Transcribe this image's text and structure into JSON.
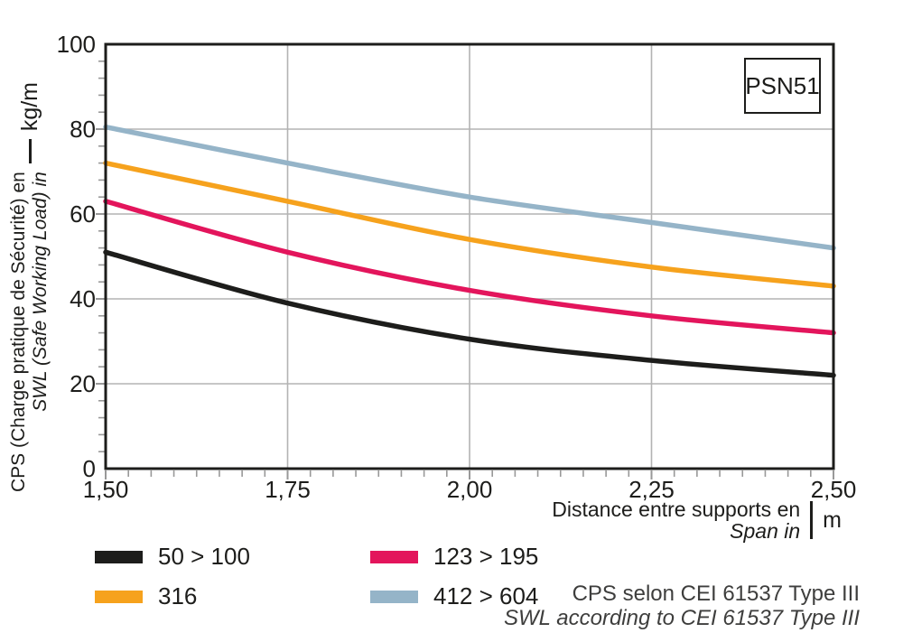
{
  "badge": {
    "label": "PSN51"
  },
  "y_axis": {
    "title_line1": "CPS (Charge pratique de Sécurité) en",
    "title_line2": "SWL (Safe Working Load) in",
    "unit": "kg/m"
  },
  "x_axis": {
    "title_line1": "Distance entre supports en",
    "title_line2": "Span in",
    "unit": "m"
  },
  "footnote": {
    "line1": "CPS selon CEI 61537 Type III",
    "line2": "SWL according to CEI 61537 Type III"
  },
  "chart_data": {
    "type": "line",
    "title": "PSN51",
    "x": [
      1.5,
      1.75,
      2.0,
      2.25,
      2.5
    ],
    "x_tick_labels": [
      "1,50",
      "1,75",
      "2,00",
      "2,25",
      "2,50"
    ],
    "y_ticks": [
      0,
      20,
      40,
      60,
      80,
      100
    ],
    "y_tick_labels": [
      "0",
      "20",
      "40",
      "60",
      "80",
      "100"
    ],
    "xlim": [
      1.5,
      2.5
    ],
    "ylim": [
      0,
      100
    ],
    "x_minor_step": 0.03125,
    "y_minor_step": 4,
    "xlabel": "Distance entre supports en / Span in (m)",
    "ylabel": "CPS (Charge pratique de Sécurité) / SWL (Safe Working Load) (kg/m)",
    "grid": true,
    "legend_position": "bottom",
    "series": [
      {
        "name": "50 > 100",
        "color": "#1d1d1b",
        "values": [
          51.0,
          39.0,
          30.5,
          25.5,
          22.0
        ]
      },
      {
        "name": "123 > 195",
        "color": "#e3155c",
        "values": [
          63.0,
          51.0,
          42.0,
          36.0,
          32.0
        ]
      },
      {
        "name": "316",
        "color": "#f6a21d",
        "values": [
          72.0,
          63.0,
          54.0,
          47.5,
          43.0
        ]
      },
      {
        "name": "412 > 604",
        "color": "#95b4c8",
        "values": [
          80.5,
          72.0,
          64.0,
          58.0,
          52.0
        ]
      }
    ],
    "colors": {
      "grid": "#b3b3b3",
      "tick": "#999999",
      "frame": "#1d1d1b",
      "text": "#1d1d1b",
      "footnote": "#3e3e3d"
    }
  }
}
